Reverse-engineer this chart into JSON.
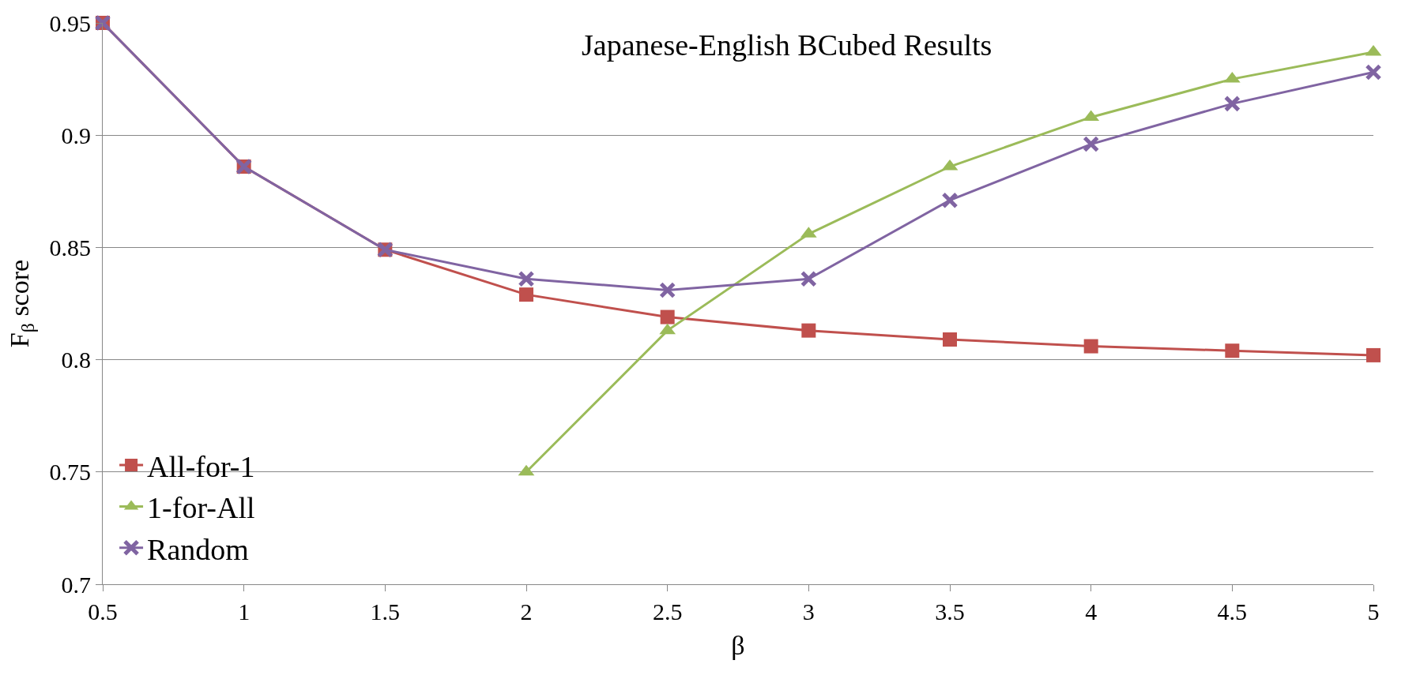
{
  "chart_data": {
    "type": "line",
    "title": "Japanese-English BCubed Results",
    "xlabel": "β",
    "ylabel": "F$_{β}$ score",
    "x": [
      0.5,
      1,
      1.5,
      2,
      2.5,
      3,
      3.5,
      4,
      4.5,
      5
    ],
    "series": [
      {
        "name": "All-for-1",
        "color": "#c0504d",
        "marker": "square",
        "values": [
          0.95,
          0.886,
          0.849,
          0.829,
          0.819,
          0.813,
          0.809,
          0.806,
          0.804,
          0.802
        ]
      },
      {
        "name": "1-for-All",
        "color": "#9bbb59",
        "marker": "triangle",
        "values": [
          null,
          null,
          null,
          0.75,
          0.813,
          0.856,
          0.886,
          0.908,
          0.925,
          0.937
        ]
      },
      {
        "name": "Random",
        "color": "#8064a2",
        "marker": "cross",
        "values": [
          0.95,
          0.886,
          0.849,
          0.836,
          0.831,
          0.836,
          0.871,
          0.896,
          0.914,
          0.928
        ]
      }
    ],
    "xlim": [
      0.5,
      5
    ],
    "xticks": [
      0.5,
      1,
      1.5,
      2,
      2.5,
      3,
      3.5,
      4,
      4.5,
      5
    ],
    "ylim": [
      0.7,
      0.95
    ],
    "yticks": [
      0.7,
      0.75,
      0.8,
      0.85,
      0.9,
      0.95
    ],
    "grid": "y",
    "legend": "bottom left",
    "line_style": "solid"
  }
}
